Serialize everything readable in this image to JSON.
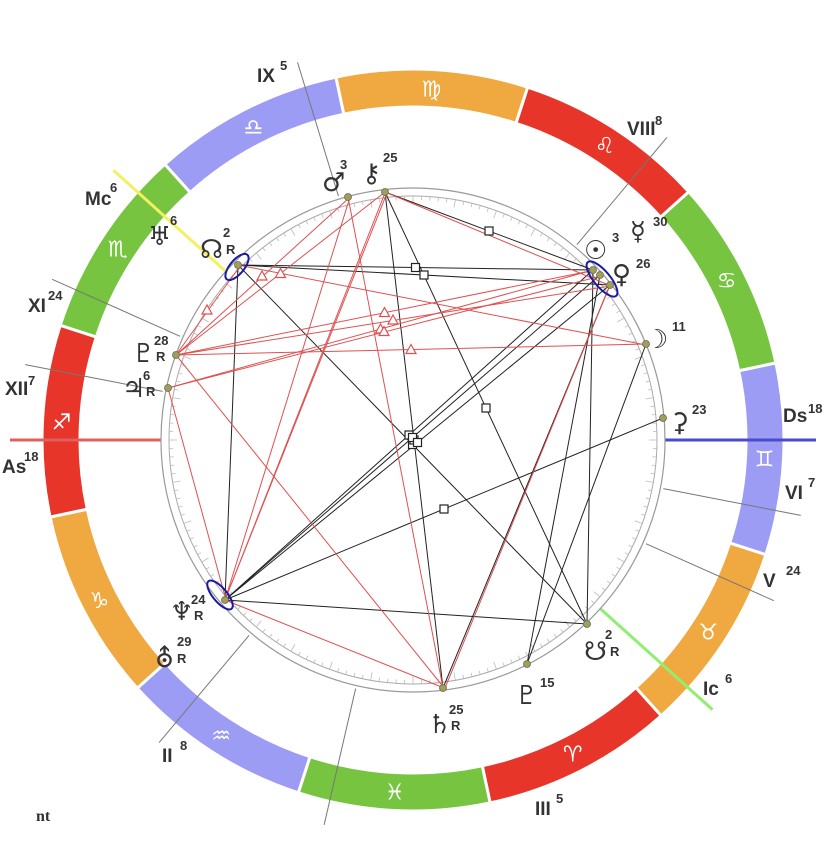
{
  "signs": [
    "♈",
    "♉",
    "♊",
    "♋",
    "♌",
    "♍",
    "♎",
    "♏",
    "♐",
    "♑",
    "♒",
    "♓"
  ],
  "houses": [
    {
      "numeral": "IX",
      "degree": 5
    },
    {
      "numeral": "VIII",
      "degree": 8
    },
    {
      "numeral": "Mc",
      "degree": 6
    },
    {
      "numeral": "XI",
      "degree": 24
    },
    {
      "numeral": "XII",
      "degree": 7
    },
    {
      "numeral": "As",
      "degree": 18
    },
    {
      "numeral": "II",
      "degree": 8
    },
    {
      "numeral": "III",
      "degree": 5
    },
    {
      "numeral": "Ic",
      "degree": 6
    },
    {
      "numeral": "V",
      "degree": 24
    },
    {
      "numeral": "VI",
      "degree": 7
    },
    {
      "numeral": "Ds",
      "degree": 18
    }
  ],
  "planets": [
    {
      "glyph": "♂",
      "degree": 3
    },
    {
      "glyph": "⚷",
      "degree": 25
    },
    {
      "glyph": "♅",
      "degree": 6
    },
    {
      "glyph": "☊",
      "degree": 2,
      "retrograde": "R"
    },
    {
      "glyph": "☉",
      "degree": 3
    },
    {
      "glyph": "☿",
      "degree": 30
    },
    {
      "glyph": "♀",
      "degree": 26
    },
    {
      "glyph": "☽",
      "degree": 11
    },
    {
      "glyph": "⚳",
      "degree": 23
    },
    {
      "glyph": "♇",
      "degree": 28,
      "retrograde": "R"
    },
    {
      "glyph": "♃",
      "degree": 6,
      "retrograde": "R"
    },
    {
      "glyph": "♆",
      "degree": 24,
      "retrograde": "R"
    },
    {
      "glyph": "⛢",
      "degree": 29,
      "retrograde": "R"
    },
    {
      "glyph": "♄",
      "degree": 25,
      "retrograde": "R"
    },
    {
      "glyph": "♇",
      "degree": 15
    },
    {
      "glyph": "☋",
      "degree": 2,
      "retrograde": "R"
    }
  ],
  "footer": "nt"
}
